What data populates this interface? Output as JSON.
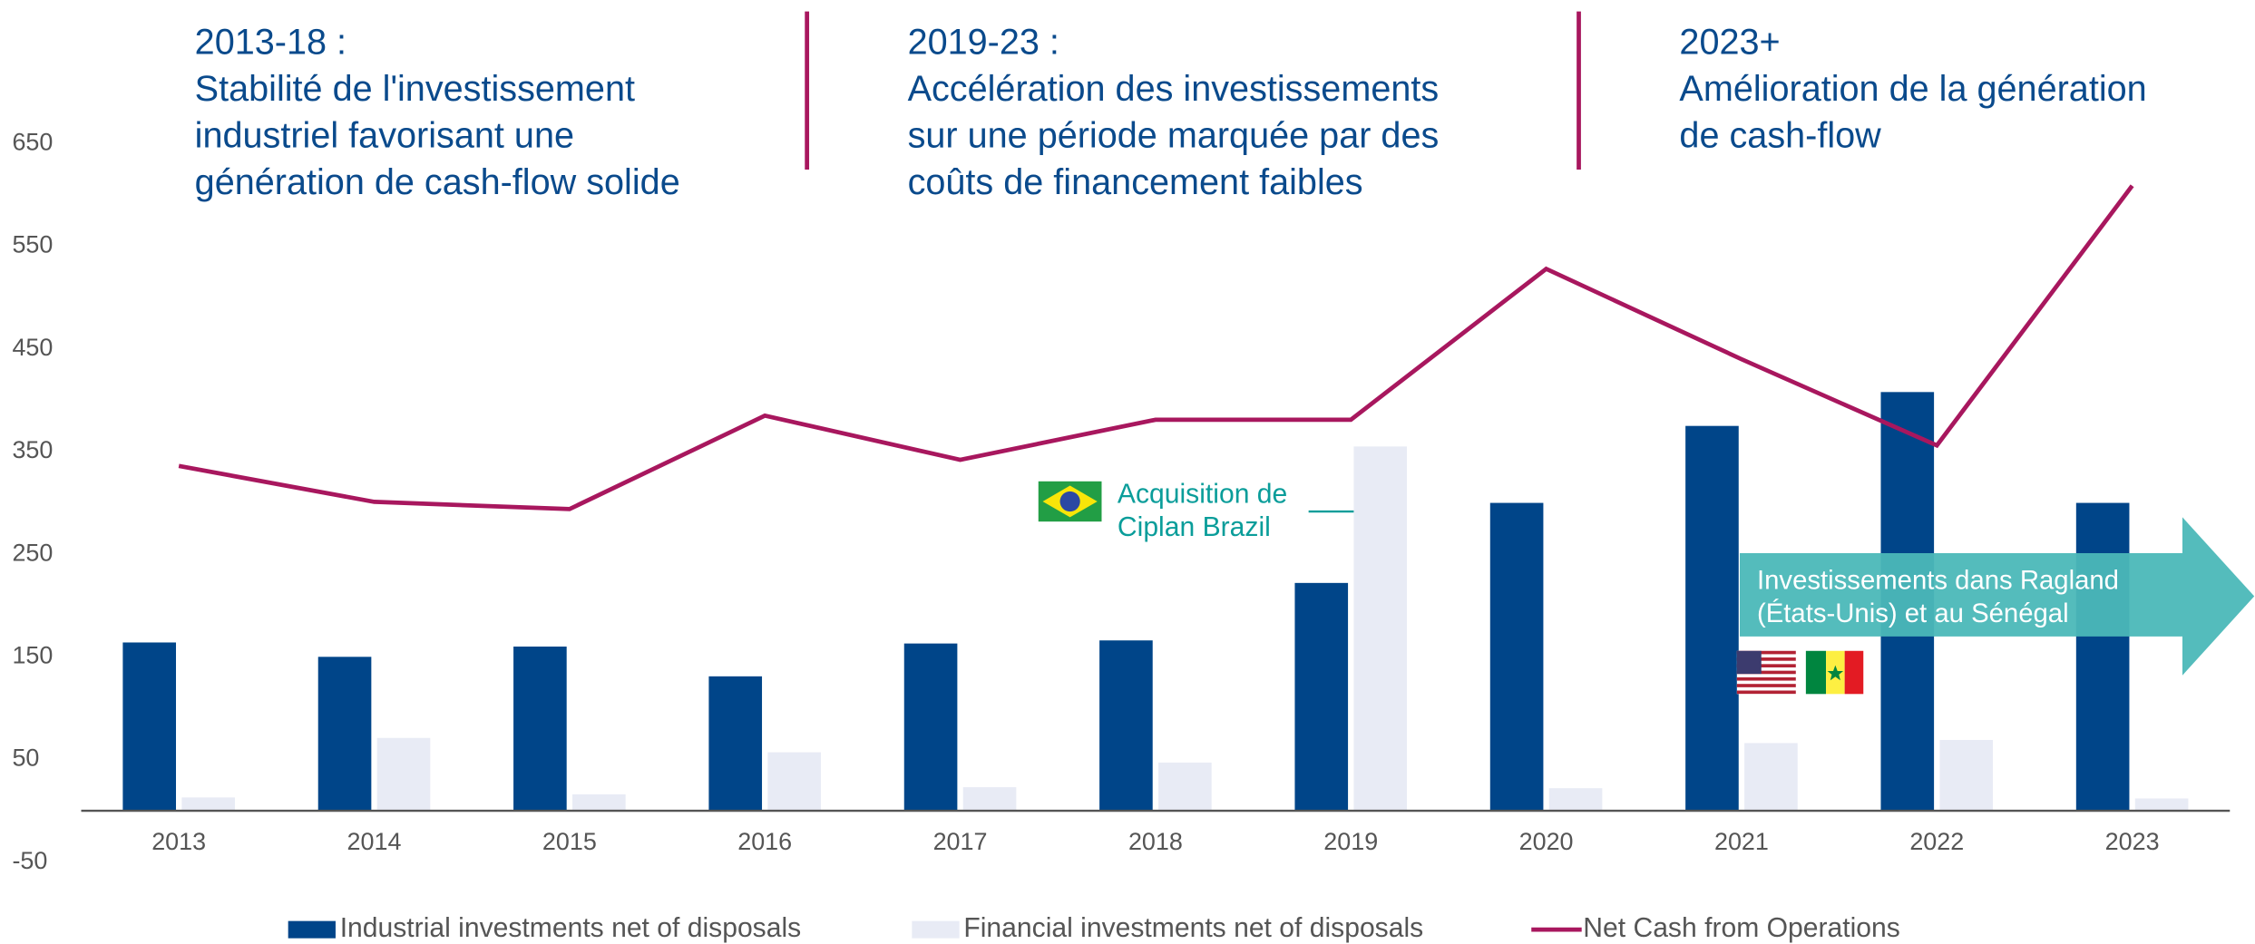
{
  "chart_data": {
    "type": "bar_line",
    "categories": [
      "2013",
      "2014",
      "2015",
      "2016",
      "2017",
      "2018",
      "2019",
      "2020",
      "2021",
      "2022",
      "2023"
    ],
    "series": [
      {
        "name": "Industrial investments net of disposals",
        "color": "#004589",
        "kind": "bar",
        "values": [
          164,
          150,
          160,
          131,
          163,
          166,
          222,
          300,
          375,
          408,
          300
        ]
      },
      {
        "name": "Financial investments net of disposals",
        "color": "#e8ebf5",
        "kind": "bar",
        "values": [
          13,
          71,
          16,
          57,
          23,
          47,
          355,
          22,
          66,
          69,
          12
        ]
      },
      {
        "name": "Net Cash from Operations",
        "color": "#a8175e",
        "kind": "line",
        "values": [
          336,
          301,
          294,
          385,
          342,
          381,
          381,
          528,
          440,
          356,
          609
        ]
      }
    ],
    "ylim": [
      -50,
      650
    ],
    "yticks": [
      -50,
      50,
      150,
      250,
      350,
      450,
      550,
      650
    ],
    "headers": [
      {
        "lines": [
          "2013-18 :",
          "Stabilité de l'investissement",
          "industriel favorisant une",
          "génération de cash-flow solide"
        ]
      },
      {
        "lines": [
          "2019-23 :",
          "Accélération des investissements",
          "sur une période marquée par des",
          "coûts de financement faibles"
        ]
      },
      {
        "lines": [
          "2023+",
          "Amélioration de la génération",
          "de cash-flow"
        ]
      }
    ],
    "callout": {
      "lines": [
        "Acquisition de",
        "Ciplan Brazil"
      ]
    },
    "arrow_note": {
      "lines": [
        "Investissements dans Ragland",
        "(États-Unis) et au Sénégal"
      ]
    }
  }
}
